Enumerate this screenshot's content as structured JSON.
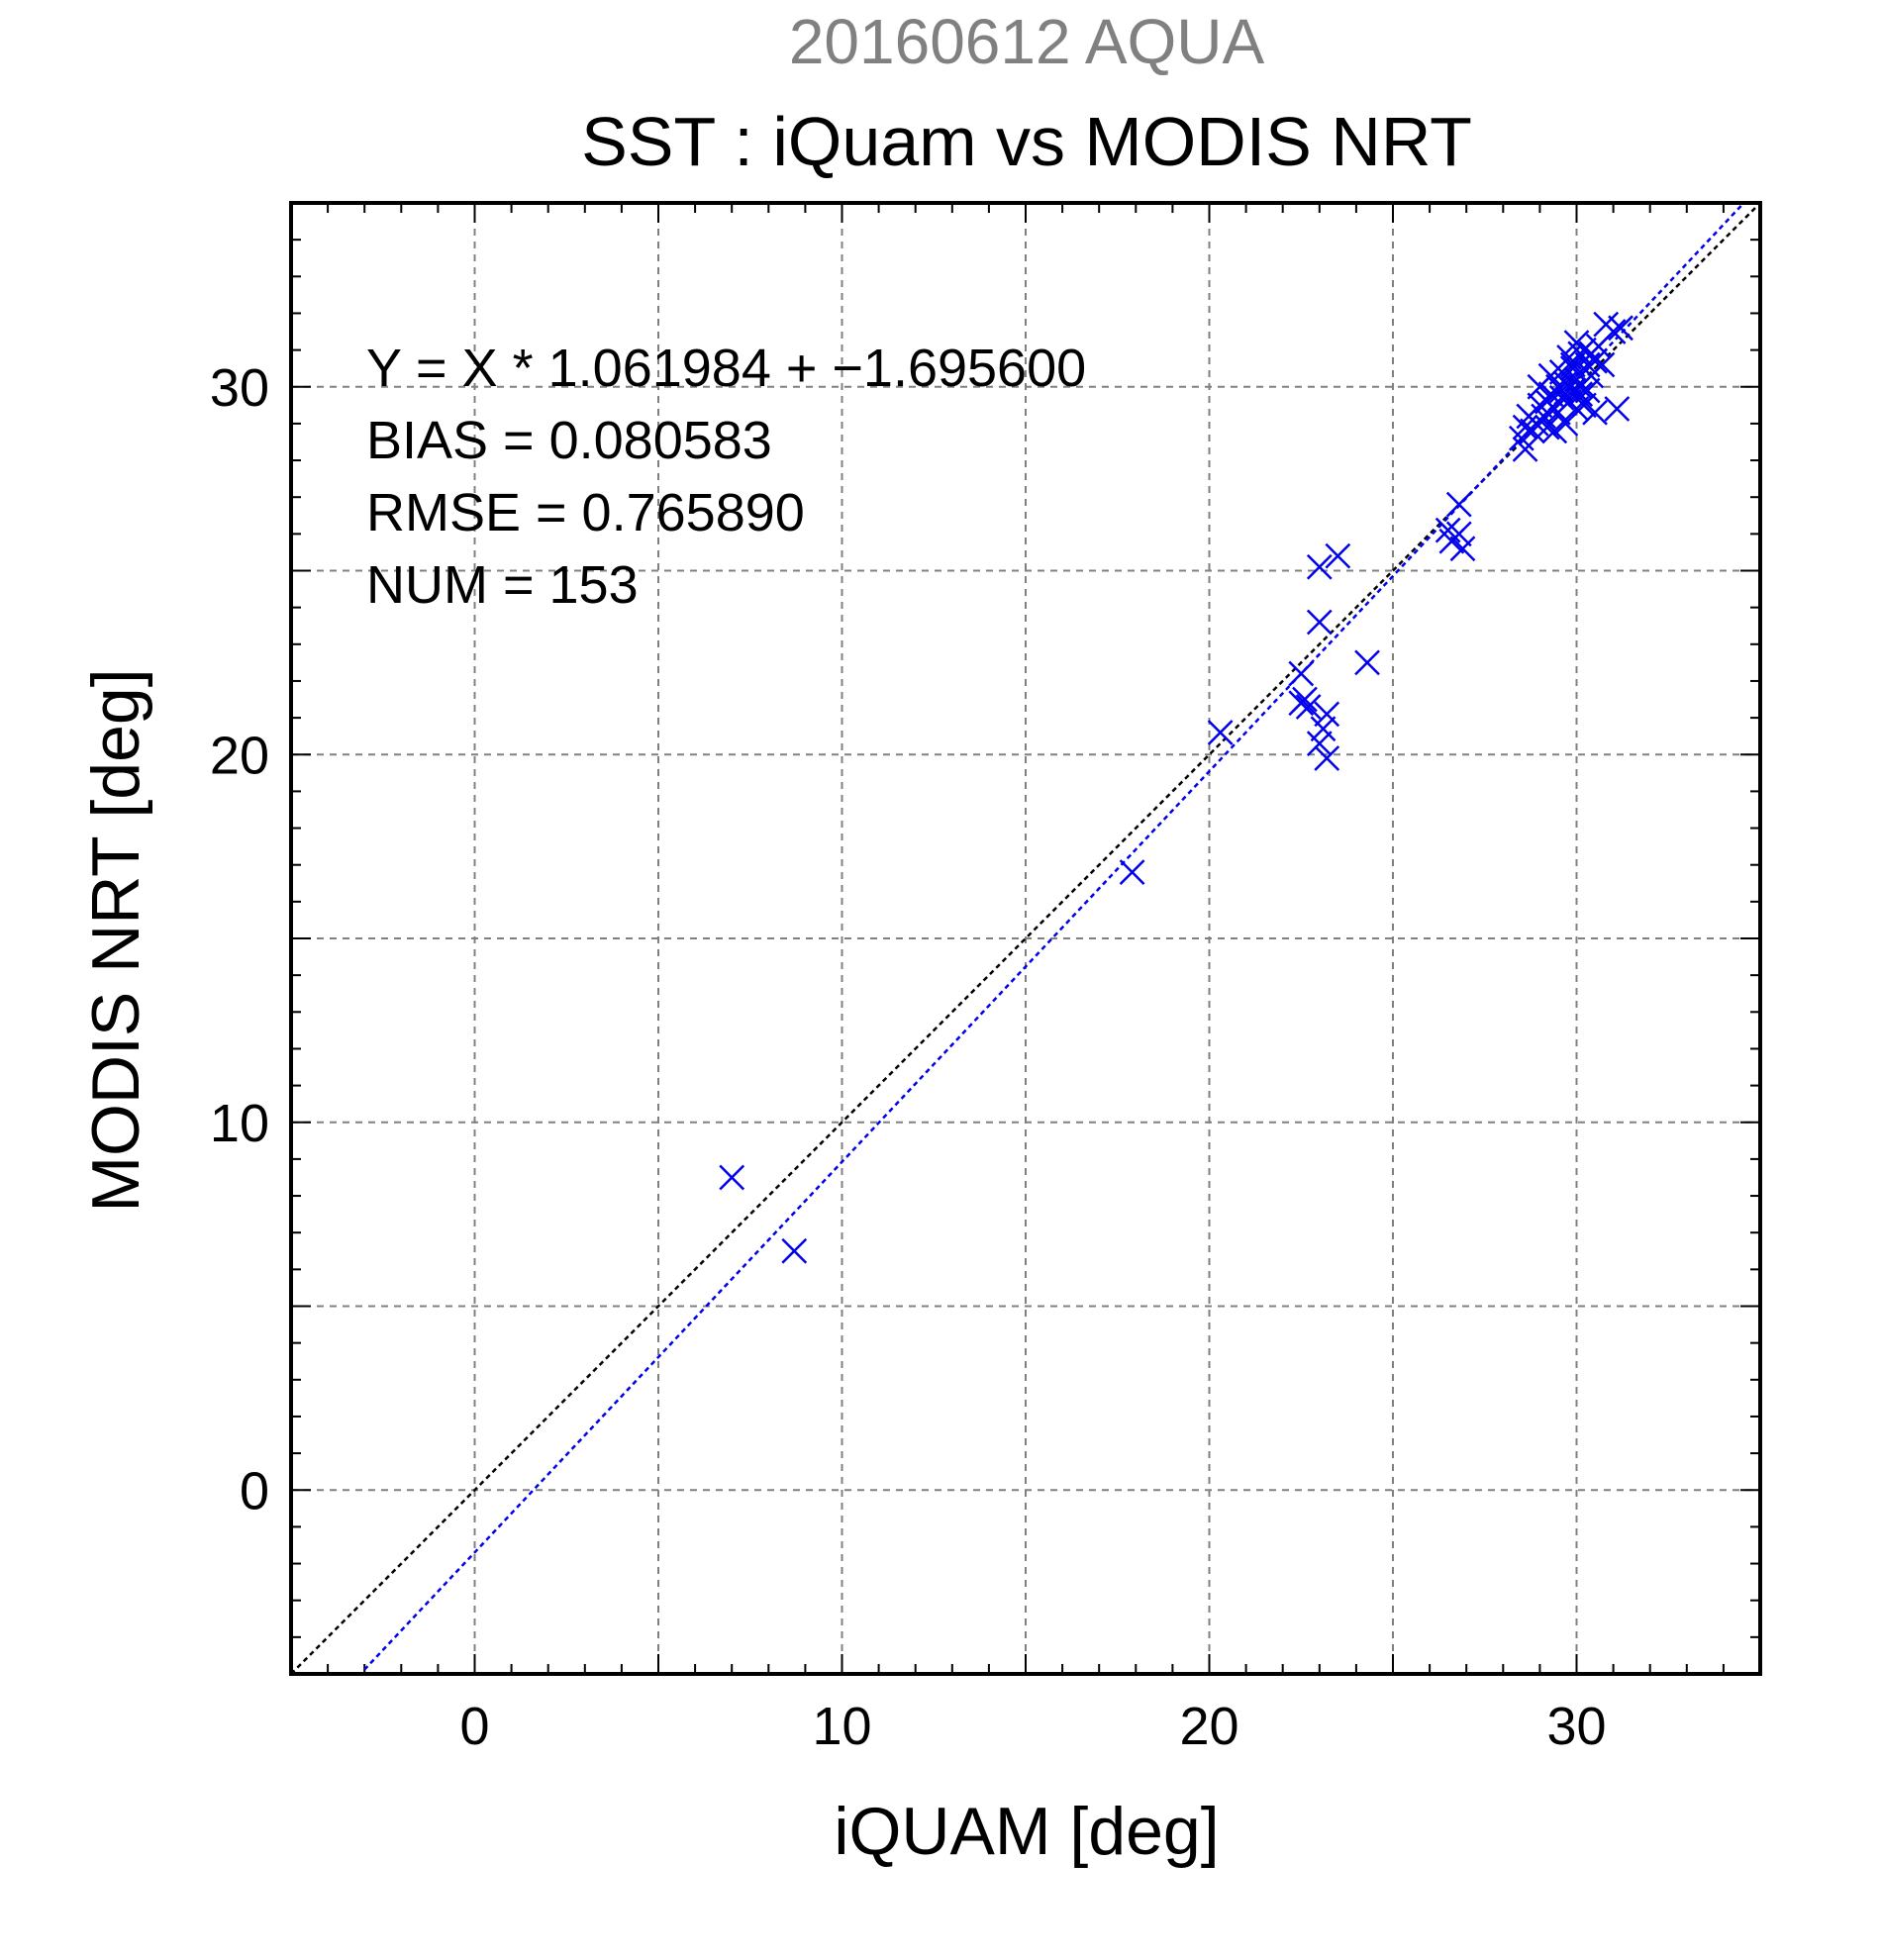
{
  "chart_data": {
    "type": "scatter",
    "supertitle": "20160612 AQUA",
    "title": "SST : iQuam vs MODIS NRT",
    "xlabel": "iQUAM [deg]",
    "ylabel": "MODIS NRT [deg]",
    "xlim": [
      -5,
      35
    ],
    "ylim": [
      -5,
      35
    ],
    "x_ticks": [
      0,
      10,
      20,
      30
    ],
    "y_ticks": [
      0,
      10,
      20,
      30
    ],
    "grid": true,
    "stats": [
      "Y = X * 1.061984 + −1.695600",
      "BIAS = 0.080583",
      "RMSE = 0.765890",
      "NUM = 153"
    ],
    "regression": {
      "slope": 1.061984,
      "intercept": -1.6956
    },
    "reference_line": {
      "slope": 1,
      "intercept": 0
    },
    "colors": {
      "points": "#0000ee",
      "regression_line": "#0000ee",
      "reference_line": "#000000",
      "supertitle": "#808080",
      "grid": "#808080"
    },
    "series": [
      {
        "points": [
          [
            7.0,
            8.5
          ],
          [
            8.7,
            6.5
          ],
          [
            17.9,
            16.8
          ],
          [
            20.3,
            20.6
          ],
          [
            22.5,
            22.2
          ],
          [
            22.6,
            21.5
          ],
          [
            22.5,
            21.4
          ],
          [
            22.7,
            21.3
          ],
          [
            23.0,
            25.1
          ],
          [
            23.0,
            23.6
          ],
          [
            23.5,
            25.4
          ],
          [
            23.0,
            20.3
          ],
          [
            23.2,
            19.9
          ],
          [
            23.2,
            21.1
          ],
          [
            23.1,
            20.7
          ],
          [
            24.3,
            22.5
          ],
          [
            26.5,
            26.1
          ],
          [
            26.6,
            25.8
          ],
          [
            26.8,
            26.8
          ],
          [
            26.9,
            25.6
          ],
          [
            26.8,
            26.0
          ],
          [
            28.5,
            28.6
          ],
          [
            28.6,
            28.9
          ],
          [
            28.6,
            28.3
          ],
          [
            28.7,
            29.2
          ],
          [
            28.8,
            28.8
          ],
          [
            28.9,
            29.0
          ],
          [
            29.0,
            29.5
          ],
          [
            29.0,
            30.0
          ],
          [
            29.1,
            29.2
          ],
          [
            29.2,
            28.9
          ],
          [
            29.2,
            29.6
          ],
          [
            29.3,
            29.8
          ],
          [
            29.3,
            30.3
          ],
          [
            29.4,
            29.4
          ],
          [
            29.4,
            28.8
          ],
          [
            29.5,
            30.0
          ],
          [
            29.5,
            29.3
          ],
          [
            29.6,
            30.4
          ],
          [
            29.6,
            29.7
          ],
          [
            29.7,
            29.0
          ],
          [
            29.7,
            30.1
          ],
          [
            29.8,
            30.8
          ],
          [
            29.8,
            29.6
          ],
          [
            29.9,
            29.9
          ],
          [
            29.9,
            30.5
          ],
          [
            30.0,
            31.2
          ],
          [
            30.0,
            29.4
          ],
          [
            30.0,
            30.2
          ],
          [
            30.1,
            29.8
          ],
          [
            30.1,
            30.9
          ],
          [
            30.2,
            31.0
          ],
          [
            30.2,
            29.5
          ],
          [
            30.3,
            30.6
          ],
          [
            30.3,
            29.9
          ],
          [
            30.4,
            30.3
          ],
          [
            30.4,
            30.9
          ],
          [
            30.5,
            29.3
          ],
          [
            30.5,
            30.7
          ],
          [
            30.6,
            31.1
          ],
          [
            30.7,
            30.6
          ],
          [
            30.8,
            31.7
          ],
          [
            31.0,
            31.5
          ],
          [
            31.1,
            29.4
          ],
          [
            31.2,
            31.6
          ],
          [
            30.1,
            30.0
          ],
          [
            29.6,
            29.9
          ],
          [
            29.9,
            30.6
          ]
        ]
      }
    ]
  }
}
